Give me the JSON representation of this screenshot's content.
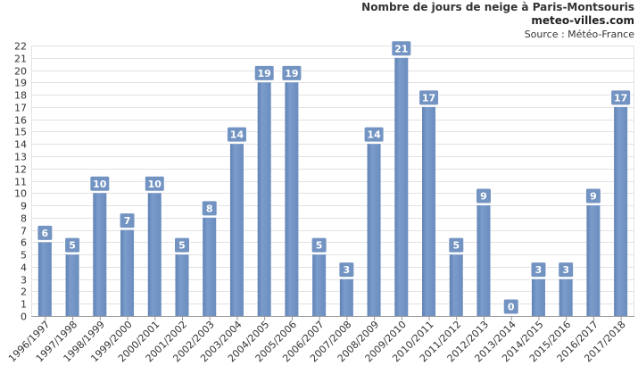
{
  "chart_data": {
    "type": "bar",
    "title": "Nombre de jours de neige à Paris-Montsouris",
    "subtitle": "meteo-villes.com",
    "source": "Source : Météo-France",
    "categories": [
      "1996/1997",
      "1997/1998",
      "1998/1999",
      "1999/2000",
      "2000/2001",
      "2001/2002",
      "2002/2003",
      "2003/2004",
      "2004/2005",
      "2005/2006",
      "2006/2007",
      "2007/2008",
      "2008/2009",
      "2009/2010",
      "2010/2011",
      "2011/2012",
      "2012/2013",
      "2013/2014",
      "2014/2015",
      "2015/2016",
      "2016/2017",
      "2017/2018"
    ],
    "values": [
      6,
      5,
      10,
      7,
      10,
      5,
      8,
      14,
      19,
      19,
      5,
      3,
      14,
      21,
      17,
      5,
      9,
      0,
      3,
      3,
      9,
      17
    ],
    "ylim": [
      0,
      22
    ],
    "yticks": [
      0,
      1,
      2,
      3,
      4,
      5,
      6,
      7,
      8,
      9,
      10,
      11,
      12,
      13,
      14,
      15,
      16,
      17,
      18,
      19,
      20,
      21,
      22
    ],
    "grid": true,
    "colors": {
      "bar": "#7394c2",
      "label_bg": "#7394c2",
      "grid": "#e2e2e2",
      "axis": "#999999"
    }
  }
}
